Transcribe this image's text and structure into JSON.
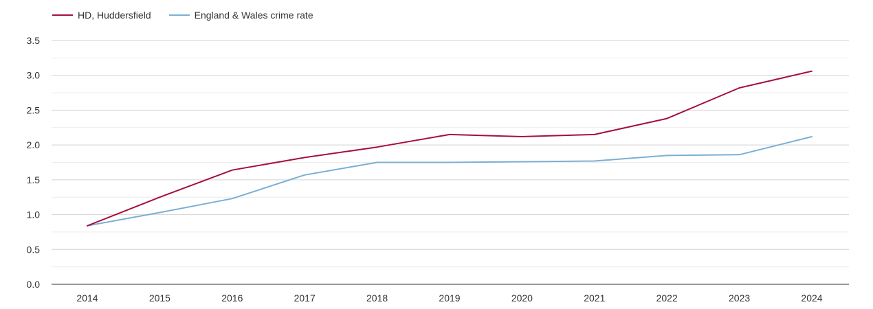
{
  "chart_data": {
    "type": "line",
    "title": "",
    "xlabel": "",
    "ylabel": "",
    "x": [
      2014,
      2015,
      2016,
      2017,
      2018,
      2019,
      2020,
      2021,
      2022,
      2023,
      2024
    ],
    "x_tick_labels": [
      "2014",
      "2015",
      "2016",
      "2017",
      "2018",
      "2019",
      "2020",
      "2021",
      "2022",
      "2023",
      "2024"
    ],
    "ylim": [
      0,
      3.5
    ],
    "y_ticks": [
      0,
      0.5,
      1,
      1.5,
      2,
      2.5,
      3,
      3.5
    ],
    "y_tick_labels": [
      "0.0",
      "0.5",
      "1.0",
      "1.5",
      "2.0",
      "2.5",
      "3.0",
      "3.5"
    ],
    "grid": true,
    "legend_position": "top-left",
    "series": [
      {
        "name": "HD, Huddersfield",
        "color": "#a50f3c",
        "values": [
          0.84,
          1.25,
          1.64,
          1.82,
          1.97,
          2.15,
          2.12,
          2.15,
          2.38,
          2.82,
          3.06
        ]
      },
      {
        "name": "England & Wales crime rate",
        "color": "#7aafd4",
        "values": [
          0.84,
          1.03,
          1.23,
          1.57,
          1.75,
          1.75,
          1.76,
          1.77,
          1.85,
          1.86,
          2.12
        ]
      }
    ]
  }
}
